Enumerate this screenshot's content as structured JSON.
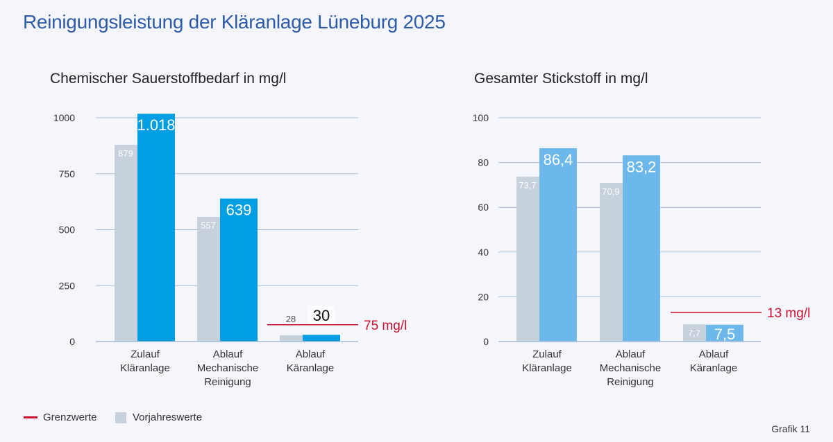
{
  "title": "Reinigungsleistung der Kläranlage Lüneburg 2025",
  "colors": {
    "title": "#2d5ba8",
    "grey": "#c7d1db",
    "blue_cod": "#009fe3",
    "blue_n": "#6cb8ea",
    "grid": "#aabcd8",
    "limit": "#c8102e"
  },
  "chart_data": [
    {
      "type": "bar",
      "title": "Chemischer Sauerstoffbedarf in mg/l",
      "categories": [
        [
          "Zulauf",
          "Kläranlage"
        ],
        [
          "Ablauf",
          "Mechanische",
          "Reinigung"
        ],
        [
          "Ablauf",
          "Käranlage"
        ]
      ],
      "series": [
        {
          "name": "Vorjahreswerte",
          "values": [
            879,
            557,
            28
          ],
          "labels": [
            "879",
            "557",
            "28"
          ]
        },
        {
          "name": "2025",
          "values": [
            1018,
            639,
            30
          ],
          "labels": [
            "1.018",
            "639",
            "30"
          ]
        }
      ],
      "ylim": [
        0,
        1000
      ],
      "yticks": [
        0,
        250,
        500,
        750,
        1000
      ],
      "ytick_labels": [
        "0",
        "250",
        "500",
        "750",
        "1000"
      ],
      "limit": {
        "value": 75,
        "label": "75 mg/l"
      }
    },
    {
      "type": "bar",
      "title": "Gesamter Stickstoff in mg/l",
      "categories": [
        [
          "Zulauf",
          "Kläranlage"
        ],
        [
          "Ablauf",
          "Mechanische",
          "Reinigung"
        ],
        [
          "Ablauf",
          "Käranlage"
        ]
      ],
      "series": [
        {
          "name": "Vorjahreswerte",
          "values": [
            73.7,
            70.9,
            7.7
          ],
          "labels": [
            "73,7",
            "70,9",
            "7,7"
          ]
        },
        {
          "name": "2025",
          "values": [
            86.4,
            83.2,
            7.5
          ],
          "labels": [
            "86,4",
            "83,2",
            "7,5"
          ]
        }
      ],
      "ylim": [
        0,
        100
      ],
      "yticks": [
        0,
        20,
        40,
        60,
        80,
        100
      ],
      "ytick_labels": [
        "0",
        "20",
        "40",
        "60",
        "80",
        "100"
      ],
      "limit": {
        "value": 13,
        "label": "13 mg/l"
      }
    }
  ],
  "legend": {
    "limits": "Grenzwerte",
    "previous": "Vorjahreswerte"
  },
  "credit": "Grafik 11"
}
